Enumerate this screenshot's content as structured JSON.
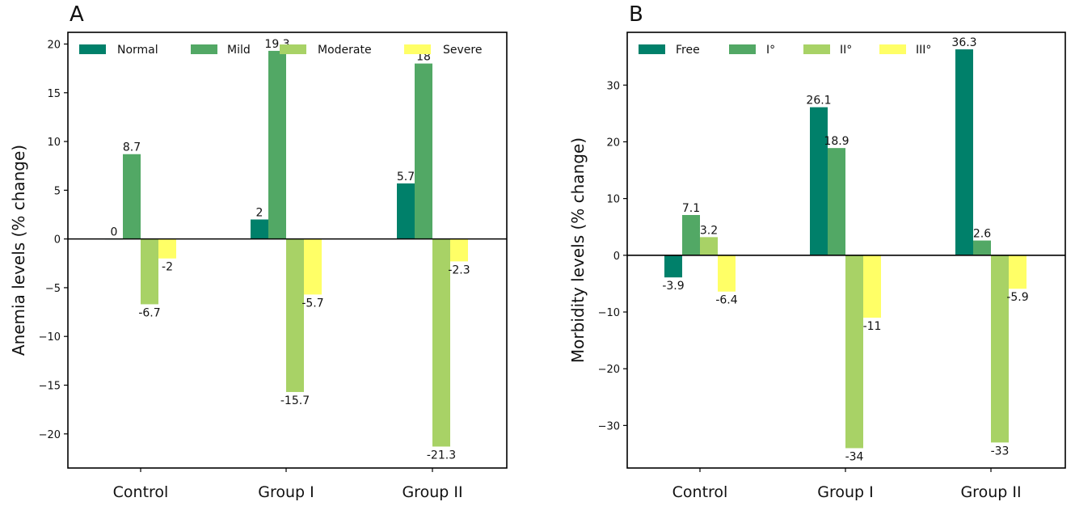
{
  "chart_data": [
    {
      "type": "bar",
      "panel": "A",
      "ylabel": "Anemia levels (% change)",
      "xlabel": "",
      "categories": [
        "Control",
        "Group I",
        "Group II"
      ],
      "series": [
        {
          "name": "Normal",
          "color": "#00806a",
          "values": [
            0,
            2,
            5.7
          ]
        },
        {
          "name": "Mild",
          "color": "#52a865",
          "values": [
            8.7,
            19.3,
            18
          ]
        },
        {
          "name": "Moderate",
          "color": "#a8d266",
          "values": [
            -6.7,
            -15.7,
            -21.3
          ]
        },
        {
          "name": "Severe",
          "color": "#ffff66",
          "values": [
            -2,
            -5.7,
            -2.3
          ]
        }
      ],
      "data_labels": [
        [
          "0",
          "2",
          "5.7"
        ],
        [
          "8.7",
          "19.3",
          "18"
        ],
        [
          "-6.7",
          "-15.7",
          "-21.3"
        ],
        [
          "-2",
          "-5.7",
          "-2.3"
        ]
      ],
      "ylim": [
        -23.5,
        21.2
      ],
      "yticks": [
        20,
        15,
        10,
        5,
        0,
        -5,
        -10,
        -15,
        -20
      ],
      "ytick_labels": [
        "20",
        "15",
        "10",
        "5",
        "0",
        "−5",
        "−10",
        "−15",
        "−20"
      ],
      "legend": "top, in a row",
      "grid": false
    },
    {
      "type": "bar",
      "panel": "B",
      "ylabel": "Morbidity levels (% change)",
      "xlabel": "",
      "categories": [
        "Control",
        "Group I",
        "Group II"
      ],
      "series": [
        {
          "name": "Free",
          "color": "#00806a",
          "values": [
            -3.9,
            26.1,
            36.3
          ]
        },
        {
          "name": "I°",
          "color": "#52a865",
          "values": [
            7.1,
            18.9,
            2.6
          ]
        },
        {
          "name": "II°",
          "color": "#a8d266",
          "values": [
            3.2,
            -34,
            -33
          ]
        },
        {
          "name": "III°",
          "color": "#ffff66",
          "values": [
            -6.4,
            -11,
            -5.9
          ]
        }
      ],
      "data_labels": [
        [
          "-3.9",
          "26.1",
          "36.3"
        ],
        [
          "7.1",
          "18.9",
          "2.6"
        ],
        [
          "3.2",
          "-34",
          "-33"
        ],
        [
          "-6.4",
          "-11",
          "-5.9"
        ]
      ],
      "ylim": [
        -37.5,
        39.3
      ],
      "yticks": [
        30,
        20,
        10,
        0,
        -10,
        -20,
        -30
      ],
      "ytick_labels": [
        "30",
        "20",
        "10",
        "0",
        "−10",
        "−20",
        "−30"
      ],
      "legend": "top, in a row",
      "grid": false
    }
  ]
}
